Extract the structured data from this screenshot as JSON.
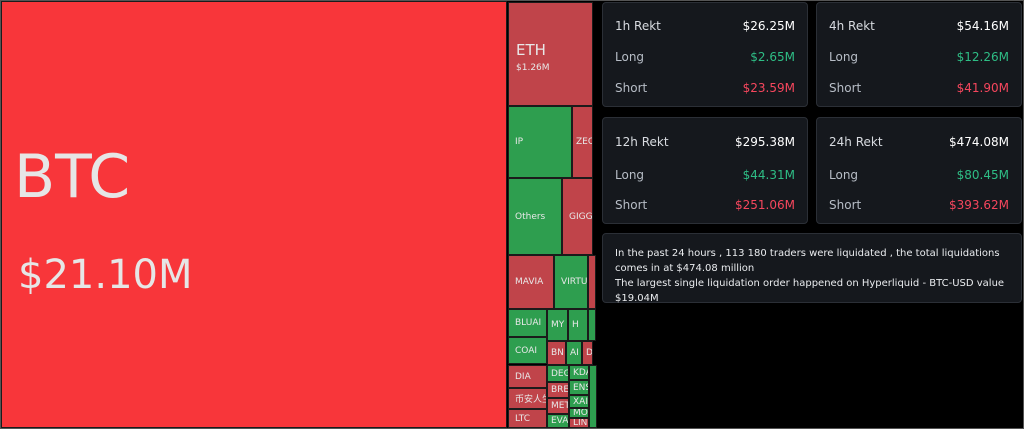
{
  "treemap": {
    "btc": {
      "symbol": "BTC",
      "value": "$21.10M",
      "color": "#f8363a"
    },
    "eth": {
      "symbol": "ETH",
      "value": "$1.26M"
    },
    "tiles": [
      "IP",
      "ZEC",
      "Others",
      "GIGGLE",
      "MAVIA",
      "VIRTU",
      "BLUAI",
      "COAI",
      "MY",
      "H",
      "BN",
      "AI",
      "D",
      "DIA",
      "币安人生",
      "LTC",
      "DEG",
      "BRE",
      "MET",
      "EVA",
      "KDA",
      "ENS",
      "XAI",
      "MO",
      "LIN"
    ],
    "colors": {
      "long_dominant": "#2e9e4f",
      "short_dominant": "#c0444a"
    }
  },
  "cards": [
    {
      "title": "1h Rekt",
      "total": "$26.25M",
      "long_label": "Long",
      "long": "$2.65M",
      "short_label": "Short",
      "short": "$23.59M"
    },
    {
      "title": "4h Rekt",
      "total": "$54.16M",
      "long_label": "Long",
      "long": "$12.26M",
      "short_label": "Short",
      "short": "$41.90M"
    },
    {
      "title": "12h Rekt",
      "total": "$295.38M",
      "long_label": "Long",
      "long": "$44.31M",
      "short_label": "Short",
      "short": "$251.06M"
    },
    {
      "title": "24h Rekt",
      "total": "$474.08M",
      "long_label": "Long",
      "long": "$80.45M",
      "short_label": "Short",
      "short": "$393.62M"
    }
  ],
  "info": {
    "line1": "In the past 24 hours , 113 180 traders were liquidated , the total liquidations comes in at $474.08 million",
    "line2": "The largest single liquidation order happened on Hyperliquid - BTC-USD value $19.04M"
  }
}
